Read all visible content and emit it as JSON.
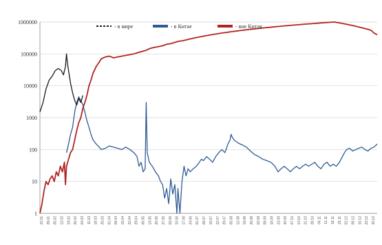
{
  "chart_data": {
    "type": "line",
    "yscale": "log",
    "ylim": [
      1,
      1000000
    ],
    "grid": true,
    "legend_position": "top",
    "yticks": [
      {
        "value": 1,
        "label": "1"
      },
      {
        "value": 10,
        "label": "10"
      },
      {
        "value": 100,
        "label": "100"
      },
      {
        "value": 1000,
        "label": "1000"
      },
      {
        "value": 10000,
        "label": "10000"
      },
      {
        "value": 100000,
        "label": "100000"
      },
      {
        "value": 1000000,
        "label": "1000000"
      }
    ],
    "x_count": 330,
    "series": [
      {
        "name": "- в мире",
        "color": "#1a1a1a",
        "style": "dashed-legend",
        "points": [
          [
            0,
            1500
          ],
          [
            3,
            3000
          ],
          [
            6,
            8000
          ],
          [
            9,
            15000
          ],
          [
            12,
            20000
          ],
          [
            15,
            30000
          ],
          [
            18,
            35000
          ],
          [
            21,
            30000
          ],
          [
            23,
            22000
          ],
          [
            25,
            40000
          ],
          [
            26,
            100000
          ],
          [
            27,
            50000
          ],
          [
            28,
            30000
          ],
          [
            30,
            12000
          ],
          [
            32,
            6000
          ],
          [
            34,
            3500
          ],
          [
            36,
            2500
          ],
          [
            38,
            4000
          ],
          [
            40,
            3000
          ],
          [
            42,
            5000
          ]
        ]
      },
      {
        "name": "- в Китае",
        "color": "#2e5a93",
        "points": [
          [
            26,
            80
          ],
          [
            28,
            150
          ],
          [
            30,
            300
          ],
          [
            32,
            500
          ],
          [
            34,
            1500
          ],
          [
            36,
            3000
          ],
          [
            38,
            4500
          ],
          [
            40,
            3500
          ],
          [
            42,
            2500
          ],
          [
            44,
            1500
          ],
          [
            46,
            800
          ],
          [
            48,
            500
          ],
          [
            50,
            300
          ],
          [
            52,
            200
          ],
          [
            55,
            150
          ],
          [
            58,
            120
          ],
          [
            60,
            100
          ],
          [
            64,
            110
          ],
          [
            68,
            130
          ],
          [
            72,
            120
          ],
          [
            76,
            110
          ],
          [
            80,
            100
          ],
          [
            84,
            120
          ],
          [
            88,
            100
          ],
          [
            92,
            80
          ],
          [
            95,
            60
          ],
          [
            97,
            30
          ],
          [
            99,
            40
          ],
          [
            101,
            20
          ],
          [
            103,
            25
          ],
          [
            104,
            3000
          ],
          [
            105,
            80
          ],
          [
            107,
            40
          ],
          [
            110,
            30
          ],
          [
            113,
            20
          ],
          [
            116,
            15
          ],
          [
            118,
            10
          ],
          [
            120,
            8
          ],
          [
            122,
            3
          ],
          [
            124,
            6
          ],
          [
            126,
            2
          ],
          [
            128,
            12
          ],
          [
            130,
            4
          ],
          [
            132,
            8
          ],
          [
            134,
            1
          ],
          [
            135,
            6
          ],
          [
            137,
            1
          ],
          [
            139,
            10
          ],
          [
            141,
            30
          ],
          [
            143,
            15
          ],
          [
            145,
            25
          ],
          [
            147,
            20
          ],
          [
            150,
            25
          ],
          [
            153,
            30
          ],
          [
            156,
            40
          ],
          [
            158,
            50
          ],
          [
            160,
            45
          ],
          [
            163,
            60
          ],
          [
            166,
            50
          ],
          [
            169,
            40
          ],
          [
            172,
            60
          ],
          [
            175,
            80
          ],
          [
            178,
            100
          ],
          [
            181,
            80
          ],
          [
            184,
            150
          ],
          [
            186,
            200
          ],
          [
            187,
            300
          ],
          [
            188,
            250
          ],
          [
            190,
            200
          ],
          [
            194,
            160
          ],
          [
            198,
            140
          ],
          [
            202,
            120
          ],
          [
            206,
            90
          ],
          [
            210,
            70
          ],
          [
            214,
            60
          ],
          [
            218,
            50
          ],
          [
            222,
            45
          ],
          [
            226,
            40
          ],
          [
            230,
            30
          ],
          [
            233,
            20
          ],
          [
            236,
            25
          ],
          [
            239,
            30
          ],
          [
            242,
            25
          ],
          [
            245,
            20
          ],
          [
            248,
            25
          ],
          [
            251,
            30
          ],
          [
            254,
            25
          ],
          [
            257,
            30
          ],
          [
            260,
            35
          ],
          [
            263,
            30
          ],
          [
            266,
            35
          ],
          [
            269,
            40
          ],
          [
            272,
            30
          ],
          [
            275,
            25
          ],
          [
            278,
            35
          ],
          [
            281,
            40
          ],
          [
            284,
            30
          ],
          [
            287,
            35
          ],
          [
            290,
            30
          ],
          [
            293,
            40
          ],
          [
            296,
            60
          ],
          [
            298,
            80
          ],
          [
            300,
            100
          ],
          [
            303,
            110
          ],
          [
            306,
            90
          ],
          [
            309,
            100
          ],
          [
            312,
            110
          ],
          [
            315,
            120
          ],
          [
            318,
            100
          ],
          [
            321,
            90
          ],
          [
            324,
            110
          ],
          [
            327,
            120
          ],
          [
            330,
            150
          ]
        ]
      },
      {
        "name": "- вне Китая",
        "color": "#b22222",
        "points": [
          [
            0,
            1
          ],
          [
            2,
            2
          ],
          [
            4,
            5
          ],
          [
            6,
            10
          ],
          [
            8,
            8
          ],
          [
            10,
            12
          ],
          [
            12,
            15
          ],
          [
            14,
            10
          ],
          [
            16,
            20
          ],
          [
            18,
            15
          ],
          [
            20,
            30
          ],
          [
            22,
            20
          ],
          [
            24,
            40
          ],
          [
            25,
            8
          ],
          [
            26,
            30
          ],
          [
            28,
            50
          ],
          [
            30,
            80
          ],
          [
            32,
            100
          ],
          [
            34,
            200
          ],
          [
            36,
            400
          ],
          [
            38,
            700
          ],
          [
            40,
            1000
          ],
          [
            42,
            2000
          ],
          [
            44,
            3000
          ],
          [
            46,
            5000
          ],
          [
            48,
            10000
          ],
          [
            50,
            15000
          ],
          [
            52,
            25000
          ],
          [
            55,
            40000
          ],
          [
            58,
            55000
          ],
          [
            60,
            70000
          ],
          [
            64,
            80000
          ],
          [
            68,
            85000
          ],
          [
            72,
            75000
          ],
          [
            76,
            80000
          ],
          [
            80,
            85000
          ],
          [
            84,
            90000
          ],
          [
            88,
            95000
          ],
          [
            92,
            100000
          ],
          [
            96,
            110000
          ],
          [
            100,
            120000
          ],
          [
            104,
            130000
          ],
          [
            108,
            150000
          ],
          [
            112,
            160000
          ],
          [
            116,
            170000
          ],
          [
            120,
            180000
          ],
          [
            124,
            200000
          ],
          [
            128,
            210000
          ],
          [
            132,
            230000
          ],
          [
            136,
            250000
          ],
          [
            140,
            260000
          ],
          [
            144,
            280000
          ],
          [
            148,
            300000
          ],
          [
            152,
            320000
          ],
          [
            156,
            340000
          ],
          [
            160,
            360000
          ],
          [
            164,
            380000
          ],
          [
            168,
            400000
          ],
          [
            172,
            420000
          ],
          [
            176,
            440000
          ],
          [
            180,
            460000
          ],
          [
            184,
            480000
          ],
          [
            188,
            500000
          ],
          [
            192,
            520000
          ],
          [
            196,
            540000
          ],
          [
            200,
            560000
          ],
          [
            204,
            580000
          ],
          [
            208,
            600000
          ],
          [
            212,
            620000
          ],
          [
            216,
            640000
          ],
          [
            220,
            660000
          ],
          [
            224,
            680000
          ],
          [
            228,
            700000
          ],
          [
            232,
            720000
          ],
          [
            236,
            740000
          ],
          [
            240,
            760000
          ],
          [
            244,
            780000
          ],
          [
            248,
            800000
          ],
          [
            252,
            820000
          ],
          [
            256,
            840000
          ],
          [
            260,
            860000
          ],
          [
            264,
            880000
          ],
          [
            268,
            900000
          ],
          [
            272,
            920000
          ],
          [
            276,
            940000
          ],
          [
            280,
            960000
          ],
          [
            284,
            980000
          ],
          [
            288,
            1000000
          ],
          [
            292,
            950000
          ],
          [
            296,
            900000
          ],
          [
            300,
            850000
          ],
          [
            304,
            800000
          ],
          [
            308,
            750000
          ],
          [
            312,
            700000
          ],
          [
            316,
            650000
          ],
          [
            320,
            600000
          ],
          [
            324,
            550000
          ],
          [
            327,
            450000
          ],
          [
            330,
            400000
          ]
        ]
      }
    ],
    "x_date_labels": [
      "22.01",
      "29.01",
      "05.02",
      "12.02",
      "19.02",
      "26.02",
      "04.03",
      "11.03",
      "18.03",
      "25.03",
      "01.04",
      "08.04",
      "15.04",
      "22.04",
      "29.04",
      "06.05",
      "13.05",
      "20.05",
      "27.05",
      "03.06",
      "10.06",
      "17.06",
      "24.06",
      "01.07",
      "08.07",
      "15.07",
      "22.07",
      "29.07",
      "05.08",
      "12.08",
      "19.08",
      "26.08",
      "02.09",
      "09.09",
      "16.09",
      "23.09",
      "30.09",
      "07.10",
      "14.10",
      "21.10",
      "28.10",
      "04.11",
      "11.11",
      "18.11",
      "25.11",
      "02.12",
      "09.12",
      "16.12",
      "23.12",
      "30.12"
    ]
  }
}
